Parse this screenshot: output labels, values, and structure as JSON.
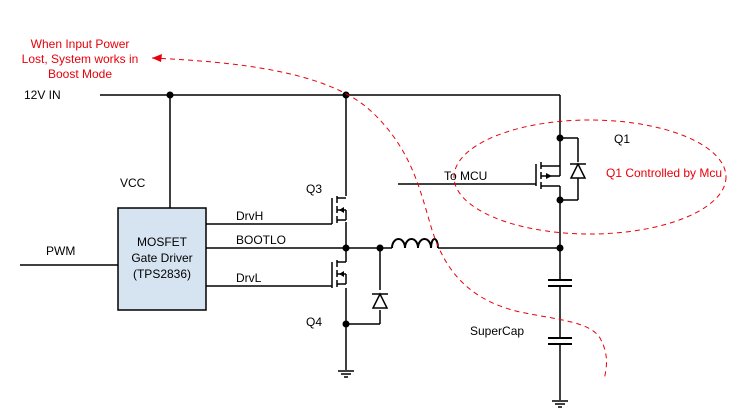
{
  "colors": {
    "wire": "#000000",
    "annotation": "#e8000b",
    "driver_fill": "#d6e4f2",
    "dot": "#000000"
  },
  "labels": {
    "supply": "12V IN",
    "vcc": "VCC",
    "pwm": "PWM",
    "driver_line1": "MOSFET",
    "driver_line2": "Gate Driver",
    "driver_line3": "(TPS2836)",
    "drvh": "DrvH",
    "bootlo": "BOOTLO",
    "drvl": "DrvL",
    "q3": "Q3",
    "q4": "Q4",
    "to_mcu": "To MCU",
    "q1": "Q1",
    "supercap": "SuperCap"
  },
  "annotations": {
    "boost_line1": "When Input Power",
    "boost_line2": "Lost,  System works in",
    "boost_line3": "Boost Mode",
    "q1_note": "Q1 Controlled by Mcu"
  }
}
